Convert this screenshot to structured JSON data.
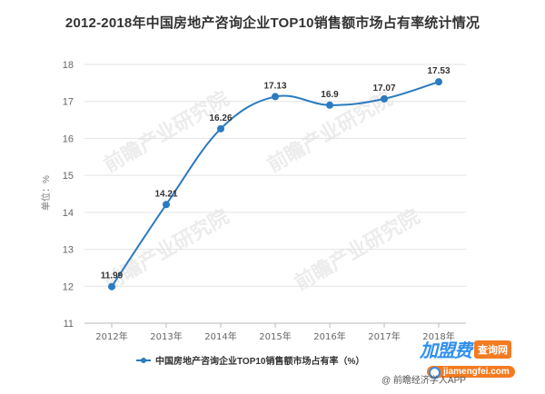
{
  "title": "2012-2018年中国房地产咨询企业TOP10销售额市场占有率统计情况",
  "y_axis_label": "单位：%",
  "legend_label": "中国房地产咨询企业TOP10销售额市场占有率（%）",
  "source": "@ 前瞻经济学人APP",
  "watermark": "前瞻产业研究院",
  "badge": {
    "brand": "加盟费",
    "query": "查询网",
    "url": "jiamengfei.com"
  },
  "colors": {
    "line": "#2a7bbf",
    "grid": "#e3e3e3",
    "axis": "#bbbbbb",
    "text": "#333333"
  },
  "chart_data": {
    "type": "line",
    "title": "2012-2018年中国房地产咨询企业TOP10销售额市场占有率统计情况",
    "xlabel": "",
    "ylabel": "单位：%",
    "categories": [
      "2012年",
      "2013年",
      "2014年",
      "2015年",
      "2016年",
      "2017年",
      "2018年"
    ],
    "series": [
      {
        "name": "中国房地产咨询企业TOP10销售额市场占有率（%）",
        "values": [
          11.99,
          14.21,
          16.26,
          17.13,
          16.9,
          17.07,
          17.53
        ]
      }
    ],
    "ylim": [
      11,
      18
    ],
    "yticks": [
      11,
      12,
      13,
      14,
      15,
      16,
      17,
      18
    ],
    "grid": true,
    "smooth": true,
    "data_labels": true,
    "legend_position": "bottom"
  }
}
